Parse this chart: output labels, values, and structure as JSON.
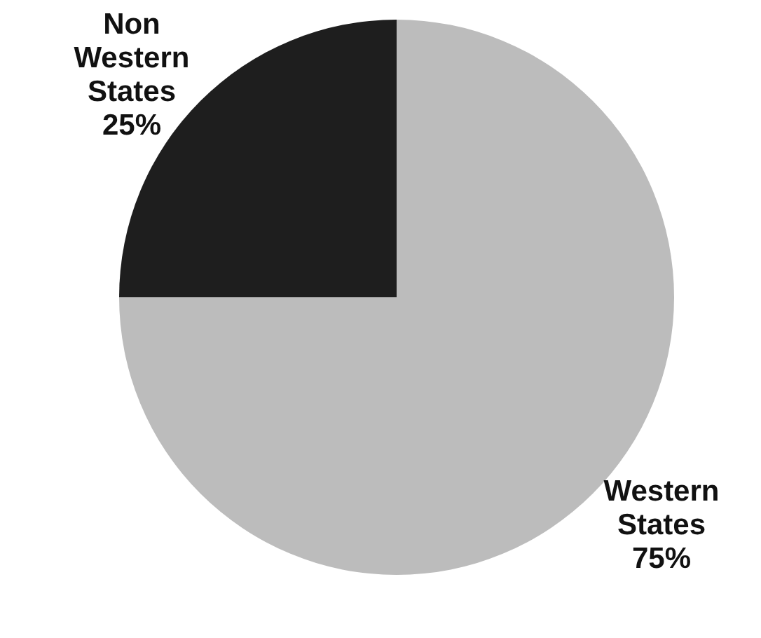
{
  "chart_data": {
    "type": "pie",
    "categories": [
      "Western States",
      "Non Western States"
    ],
    "values": [
      75,
      25
    ],
    "colors": [
      "#bcbcbc",
      "#1e1e1e"
    ],
    "value_labels": [
      "75%",
      "25%"
    ]
  }
}
